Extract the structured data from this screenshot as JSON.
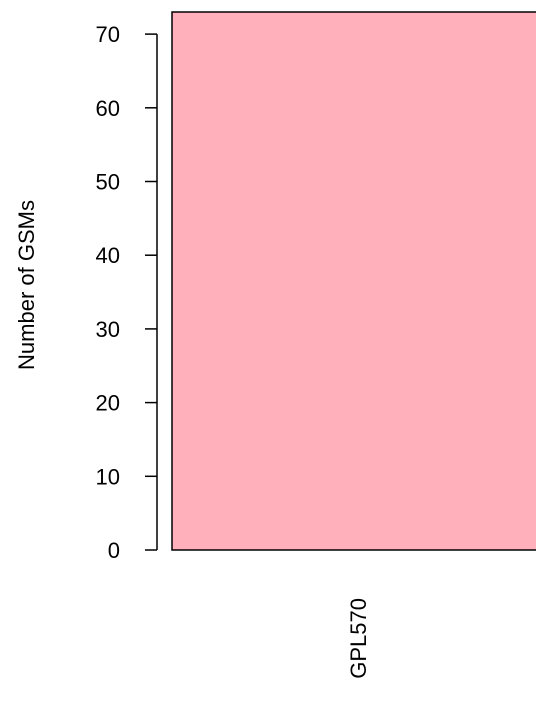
{
  "chart_data": {
    "type": "bar",
    "categories": [
      "GPL570"
    ],
    "values": [
      73
    ],
    "title": "",
    "xlabel": "",
    "ylabel": "Number of GSMs",
    "ylim": [
      0,
      73
    ],
    "yticks": [
      0,
      10,
      20,
      30,
      40,
      50,
      60,
      70
    ],
    "grid": false,
    "bar_color": "#ffb0bb",
    "bar_border_color": "#000000"
  }
}
